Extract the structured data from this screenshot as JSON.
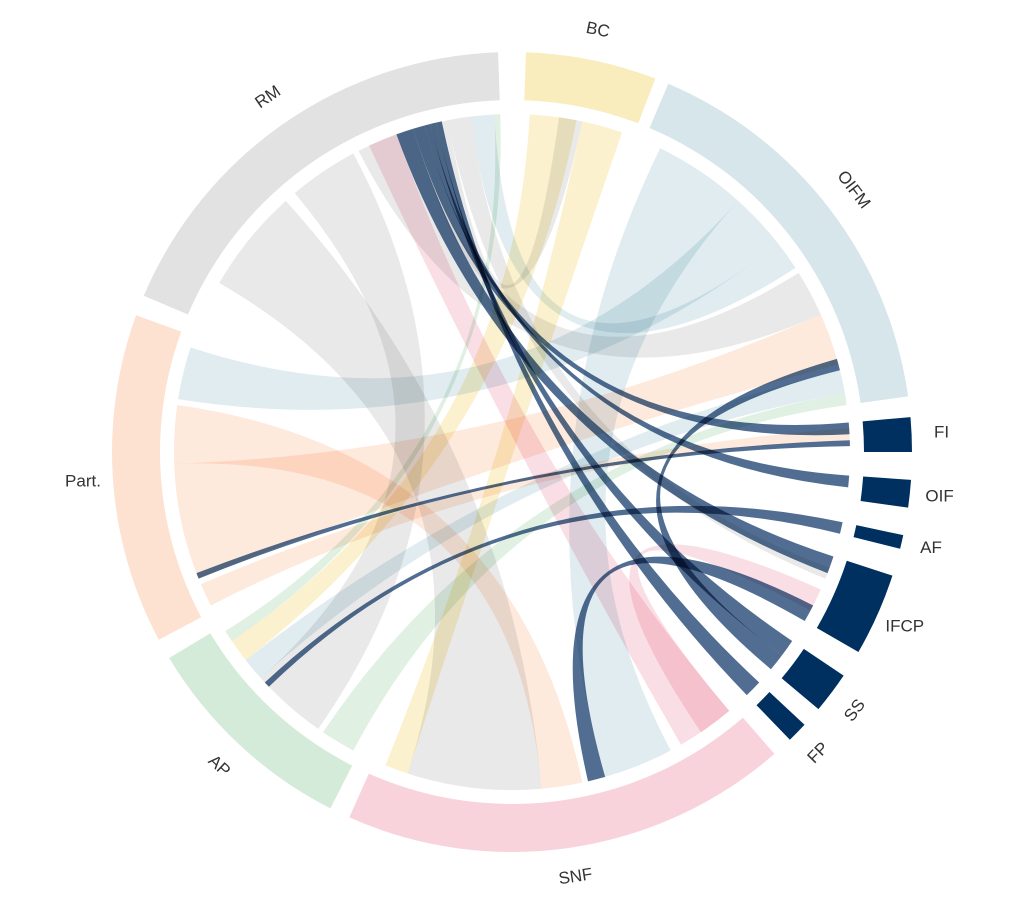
{
  "diagram": {
    "type": "chord",
    "groups": [
      {
        "id": "BC",
        "label": "BC",
        "start_deg": 2,
        "end_deg": 21,
        "color": "#f9ecbd"
      },
      {
        "id": "OIFM",
        "label": "OIFM",
        "start_deg": 23,
        "end_deg": 82,
        "color": "#d6e6eb"
      },
      {
        "id": "FI",
        "label": "FI",
        "start_deg": 85,
        "end_deg": 90,
        "color": "#00305f"
      },
      {
        "id": "OIF",
        "label": "OIF",
        "start_deg": 94,
        "end_deg": 98,
        "color": "#00305f"
      },
      {
        "id": "AF",
        "label": "AF",
        "start_deg": 102,
        "end_deg": 104,
        "color": "#00305f"
      },
      {
        "id": "IFCP",
        "label": "IFCP",
        "start_deg": 108,
        "end_deg": 120,
        "color": "#00305f"
      },
      {
        "id": "SS",
        "label": "SS",
        "start_deg": 124,
        "end_deg": 130,
        "color": "#00305f"
      },
      {
        "id": "FP",
        "label": "FP",
        "start_deg": 133,
        "end_deg": 136,
        "color": "#00305f"
      },
      {
        "id": "SNF",
        "label": "SNF",
        "start_deg": 139,
        "end_deg": 204,
        "color": "#f8d3dc"
      },
      {
        "id": "AP",
        "label": "AP",
        "start_deg": 207,
        "end_deg": 239,
        "color": "#d5ebd9"
      },
      {
        "id": "Part.",
        "label": "Part.",
        "start_deg": 242,
        "end_deg": 290,
        "color": "#fde1d1"
      },
      {
        "id": "RM",
        "label": "RM",
        "start_deg": 293,
        "end_deg": 358,
        "color": "#e2e2e2"
      }
    ],
    "ribbons": [
      {
        "source": "RM",
        "sa": [
          300,
          318
        ],
        "target": "SNF",
        "ta": [
          175,
          198
        ],
        "color": "#e2e2e2"
      },
      {
        "source": "RM",
        "sa": [
          320,
          332
        ],
        "target": "AP",
        "ta": [
          215,
          228
        ],
        "color": "#e2e2e2"
      },
      {
        "source": "RM",
        "sa": [
          333,
          343
        ],
        "target": "OIFM",
        "ta": [
          58,
          66
        ],
        "color": "#e2e2e2"
      },
      {
        "source": "RM",
        "sa": [
          343,
          349
        ],
        "target": "BC",
        "ta": [
          8,
          12
        ],
        "color": "#e2e2e2"
      },
      {
        "source": "RM",
        "sa": [
          349,
          353
        ],
        "target": "IFCP",
        "ta": [
          110,
          112
        ],
        "color": "#e2e2e2"
      },
      {
        "source": "Part.",
        "sa": [
          248,
          268
        ],
        "target": "OIFM",
        "ta": [
          66,
          75
        ],
        "color": "#fde1d1"
      },
      {
        "source": "Part.",
        "sa": [
          268,
          278
        ],
        "target": "SNF",
        "ta": [
          168,
          175
        ],
        "color": "#fde1d1"
      },
      {
        "source": "Part.",
        "sa": [
          243,
          247
        ],
        "target": "FI",
        "ta": [
          86,
          88
        ],
        "color": "#fde1d1"
      },
      {
        "source": "OIFM",
        "sa": [
          26,
          42
        ],
        "target": "SNF",
        "ta": [
          152,
          164
        ],
        "color": "#d6e6eb"
      },
      {
        "source": "OIFM",
        "sa": [
          42,
          52
        ],
        "target": "Part.",
        "ta": [
          279,
          288
        ],
        "color": "#d6e6eb"
      },
      {
        "source": "OIFM",
        "sa": [
          76,
          80
        ],
        "target": "AP",
        "ta": [
          228,
          232
        ],
        "color": "#d6e6eb"
      },
      {
        "source": "OIFM",
        "sa": [
          52,
          57
        ],
        "target": "RM",
        "ta": [
          353,
          357
        ],
        "color": "#d6e6eb"
      },
      {
        "source": "BC",
        "sa": [
          3,
          11
        ],
        "target": "AP",
        "ta": [
          232,
          236
        ],
        "color": "#f9ecbd"
      },
      {
        "source": "BC",
        "sa": [
          12,
          19
        ],
        "target": "SNF",
        "ta": [
          198,
          202
        ],
        "color": "#f9ecbd"
      },
      {
        "source": "SNF",
        "sa": [
          140,
          150
        ],
        "target": "RM",
        "ta": [
          335,
          340
        ],
        "color": "#f8d3dc"
      },
      {
        "source": "SNF",
        "sa": [
          140,
          146
        ],
        "target": "IFCP",
        "ta": [
          114,
          118
        ],
        "color": "#f8d3dc"
      },
      {
        "source": "AP",
        "sa": [
          208,
          214
        ],
        "target": "OIFM",
        "ta": [
          80,
          82
        ],
        "color": "#d5ebd9"
      },
      {
        "source": "AP",
        "sa": [
          236,
          238
        ],
        "target": "RM",
        "ta": [
          357,
          358
        ],
        "color": "#d5ebd9"
      },
      {
        "source": "IFCP",
        "sa": [
          108,
          111
        ],
        "target": "RM",
        "ta": [
          340,
          343
        ],
        "color": "#33557f"
      },
      {
        "source": "IFCP",
        "sa": [
          117,
          120
        ],
        "target": "SNF",
        "ta": [
          164,
          167
        ],
        "color": "#33557f"
      },
      {
        "source": "FI",
        "sa": [
          85,
          87
        ],
        "target": "RM",
        "ta": [
          343,
          345
        ],
        "color": "#33557f"
      },
      {
        "source": "FI",
        "sa": [
          88,
          89
        ],
        "target": "Part.",
        "ta": [
          248,
          249
        ],
        "color": "#33557f"
      },
      {
        "source": "OIF",
        "sa": [
          94,
          96
        ],
        "target": "RM",
        "ta": [
          345,
          346
        ],
        "color": "#33557f"
      },
      {
        "source": "SS",
        "sa": [
          124,
          127
        ],
        "target": "RM",
        "ta": [
          346,
          347
        ],
        "color": "#33557f"
      },
      {
        "source": "SS",
        "sa": [
          127,
          130
        ],
        "target": "OIFM",
        "ta": [
          74,
          76
        ],
        "color": "#33557f"
      },
      {
        "source": "FP",
        "sa": [
          133,
          136
        ],
        "target": "RM",
        "ta": [
          347,
          348
        ],
        "color": "#33557f"
      },
      {
        "source": "AF",
        "sa": [
          102,
          104
        ],
        "target": "AP",
        "ta": [
          226,
          227
        ],
        "color": "#33557f"
      }
    ]
  }
}
